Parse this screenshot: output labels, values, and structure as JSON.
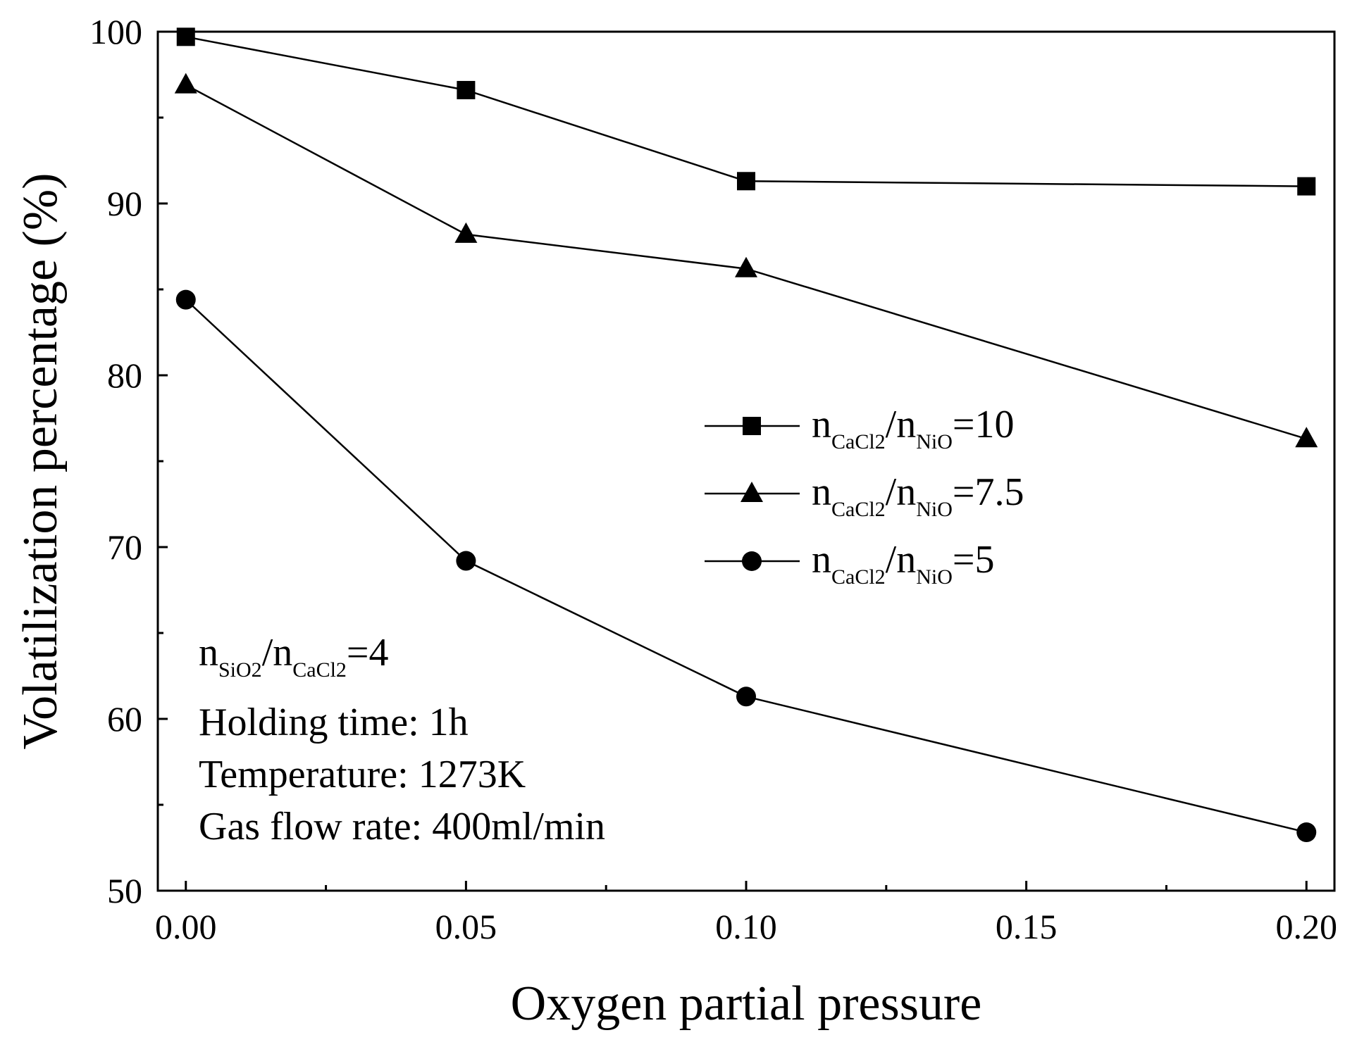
{
  "chart_data": {
    "type": "line",
    "xlabel": "Oxygen partial pressure",
    "ylabel": "Volatilization percentage (%)",
    "xlim": [
      -0.005,
      0.205
    ],
    "ylim": [
      50,
      100
    ],
    "x_ticks": [
      0.0,
      0.05,
      0.1,
      0.15,
      0.2
    ],
    "x_tick_labels": [
      "0.00",
      "0.05",
      "0.10",
      "0.15",
      "0.20"
    ],
    "y_ticks": [
      50,
      60,
      70,
      80,
      90,
      100
    ],
    "y_tick_labels": [
      "50",
      "60",
      "70",
      "80",
      "90",
      "100"
    ],
    "x": [
      0.0,
      0.05,
      0.1,
      0.2
    ],
    "series": [
      {
        "name": "nCaCl2/nNiO=10",
        "marker": "square",
        "values": [
          99.7,
          96.6,
          91.3,
          91.0
        ],
        "label": {
          "n1": "n",
          "s1": "CaCl2",
          "slash": "/",
          "n2": "n",
          "s2": "NiO",
          "eq": "=10"
        }
      },
      {
        "name": "nCaCl2/nNiO=7.5",
        "marker": "triangle",
        "values": [
          96.9,
          88.2,
          86.2,
          76.3
        ],
        "label": {
          "n1": "n",
          "s1": "CaCl2",
          "slash": "/",
          "n2": "n",
          "s2": "NiO",
          "eq": "=7.5"
        }
      },
      {
        "name": "nCaCl2/nNiO=5",
        "marker": "circle",
        "values": [
          84.4,
          69.2,
          61.3,
          53.4
        ],
        "label": {
          "n1": "n",
          "s1": "CaCl2",
          "slash": "/",
          "n2": "n",
          "s2": "NiO",
          "eq": "=5"
        }
      }
    ],
    "legend_position": "right",
    "annotations": {
      "ratio": {
        "n1": "n",
        "s1": "SiO2",
        "slash": "/",
        "n2": "n",
        "s2": "CaCl2",
        "eq": "=4"
      },
      "lines": [
        "Holding time: 1h",
        "Temperature: 1273K",
        "Gas flow rate: 400ml/min"
      ]
    },
    "colors": {
      "line": "#000000",
      "marker": "#000000"
    }
  }
}
